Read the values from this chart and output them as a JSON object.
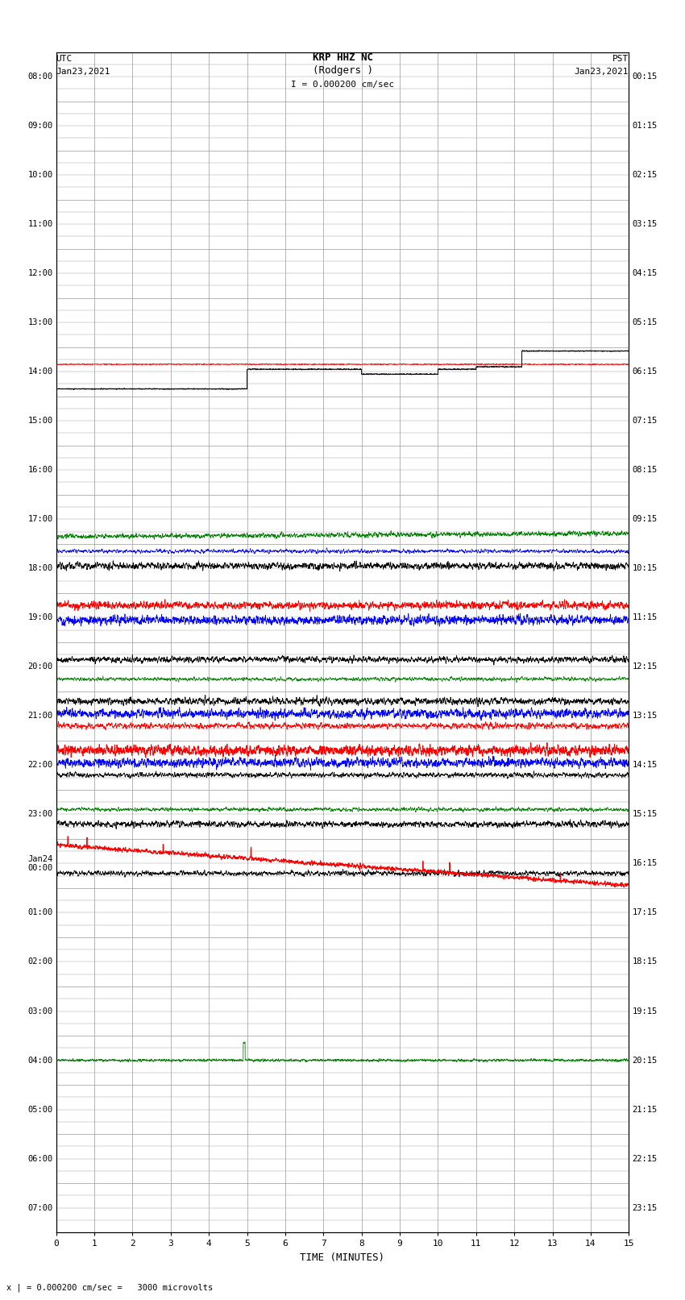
{
  "title_line1": "KRP HHZ NC",
  "title_line2": "(Rodgers )",
  "scale_label": "I = 0.000200 cm/sec",
  "xlabel": "TIME (MINUTES)",
  "bottom_note": "x | = 0.000200 cm/sec =   3000 microvolts",
  "x_min": 0,
  "x_max": 15,
  "x_ticks": [
    0,
    1,
    2,
    3,
    4,
    5,
    6,
    7,
    8,
    9,
    10,
    11,
    12,
    13,
    14,
    15
  ],
  "utc_times": [
    "08:00",
    "09:00",
    "10:00",
    "11:00",
    "12:00",
    "13:00",
    "14:00",
    "15:00",
    "16:00",
    "17:00",
    "18:00",
    "19:00",
    "20:00",
    "21:00",
    "22:00",
    "23:00",
    "Jan24\n00:00",
    "01:00",
    "02:00",
    "03:00",
    "04:00",
    "05:00",
    "06:00",
    "07:00"
  ],
  "pst_times": [
    "00:15",
    "01:15",
    "02:15",
    "03:15",
    "04:15",
    "05:15",
    "06:15",
    "07:15",
    "08:15",
    "09:15",
    "10:15",
    "11:15",
    "12:15",
    "13:15",
    "14:15",
    "15:15",
    "16:15",
    "17:15",
    "18:15",
    "19:15",
    "20:15",
    "21:15",
    "22:15",
    "23:15"
  ],
  "n_rows": 24,
  "n_minor_per_row": 4,
  "bg_color": "#ffffff",
  "grid_color": "#999999",
  "grid_lw_major": 0.5,
  "grid_lw_minor": 0.3
}
